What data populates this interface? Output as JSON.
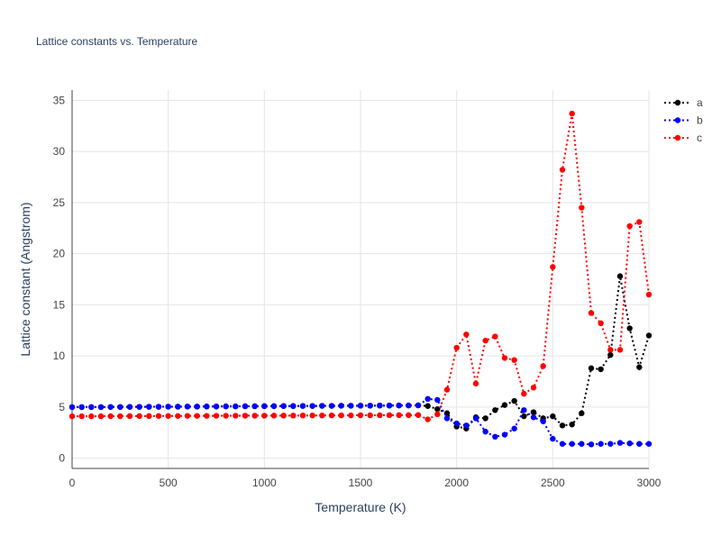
{
  "chart_data": {
    "type": "line",
    "title": "Lattice constants vs. Temperature",
    "xlabel": "Temperature (K)",
    "ylabel": "Lattice constant (Angstrom)",
    "xlim": [
      0,
      3000
    ],
    "ylim": [
      -1,
      36
    ],
    "xticks": [
      0,
      500,
      1000,
      1500,
      2000,
      2500,
      3000
    ],
    "yticks": [
      0,
      5,
      10,
      15,
      20,
      25,
      30,
      35
    ],
    "grid": true,
    "legend_position": "top-right",
    "line_style": "dotted",
    "marker": "circle",
    "x": [
      0,
      50,
      100,
      150,
      200,
      250,
      300,
      350,
      400,
      450,
      500,
      550,
      600,
      650,
      700,
      750,
      800,
      850,
      900,
      950,
      1000,
      1050,
      1100,
      1150,
      1200,
      1250,
      1300,
      1350,
      1400,
      1450,
      1500,
      1550,
      1600,
      1650,
      1700,
      1750,
      1800,
      1850,
      1900,
      1950,
      2000,
      2050,
      2100,
      2150,
      2200,
      2250,
      2300,
      2350,
      2400,
      2450,
      2500,
      2550,
      2600,
      2650,
      2700,
      2750,
      2800,
      2850,
      2900,
      2950,
      3000
    ],
    "series": [
      {
        "name": "a",
        "color": "#000000",
        "values": [
          5.0,
          5.0,
          5.0,
          5.0,
          5.01,
          5.01,
          5.02,
          5.02,
          5.03,
          5.03,
          5.04,
          5.04,
          5.05,
          5.05,
          5.06,
          5.06,
          5.07,
          5.07,
          5.08,
          5.08,
          5.09,
          5.09,
          5.1,
          5.1,
          5.11,
          5.11,
          5.12,
          5.12,
          5.13,
          5.13,
          5.14,
          5.14,
          5.15,
          5.15,
          5.16,
          5.16,
          5.17,
          5.1,
          4.8,
          4.4,
          3.1,
          2.9,
          4.0,
          3.9,
          4.7,
          5.2,
          5.6,
          4.1,
          4.5,
          3.9,
          4.1,
          3.2,
          3.3,
          4.4,
          8.8,
          8.7,
          10.1,
          17.8,
          12.7,
          8.9,
          12.0
        ]
      },
      {
        "name": "b",
        "color": "#0000ff",
        "values": [
          5.0,
          5.0,
          5.0,
          5.0,
          5.01,
          5.01,
          5.02,
          5.02,
          5.03,
          5.03,
          5.04,
          5.04,
          5.05,
          5.05,
          5.06,
          5.06,
          5.07,
          5.07,
          5.08,
          5.08,
          5.09,
          5.09,
          5.1,
          5.1,
          5.11,
          5.11,
          5.12,
          5.12,
          5.13,
          5.13,
          5.14,
          5.14,
          5.15,
          5.15,
          5.16,
          5.16,
          5.17,
          5.8,
          5.7,
          3.9,
          3.4,
          3.2,
          3.9,
          2.6,
          2.1,
          2.3,
          2.9,
          4.7,
          4.0,
          3.6,
          1.9,
          1.4,
          1.4,
          1.4,
          1.35,
          1.4,
          1.4,
          1.5,
          1.45,
          1.4,
          1.4
        ]
      },
      {
        "name": "c",
        "color": "#ff0000",
        "values": [
          4.1,
          4.1,
          4.1,
          4.1,
          4.11,
          4.11,
          4.12,
          4.12,
          4.12,
          4.13,
          4.13,
          4.13,
          4.14,
          4.14,
          4.14,
          4.15,
          4.15,
          4.15,
          4.16,
          4.16,
          4.16,
          4.17,
          4.17,
          4.17,
          4.18,
          4.18,
          4.18,
          4.19,
          4.19,
          4.19,
          4.2,
          4.2,
          4.2,
          4.21,
          4.21,
          4.21,
          4.22,
          3.8,
          4.3,
          6.7,
          10.8,
          12.1,
          7.3,
          11.5,
          11.9,
          9.8,
          9.6,
          6.3,
          6.9,
          9.0,
          18.7,
          28.2,
          33.7,
          24.5,
          14.2,
          13.2,
          10.6,
          10.6,
          22.7,
          23.1,
          16.0
        ]
      }
    ]
  }
}
